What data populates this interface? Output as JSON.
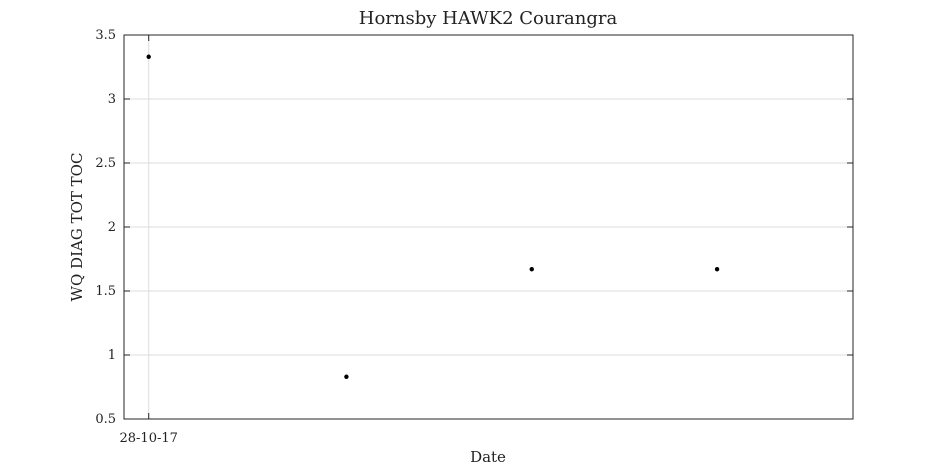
{
  "chart_data": {
    "type": "scatter",
    "title": "Hornsby HAWK2 Courangra",
    "xlabel": "Date",
    "ylabel": "WQ DIAG TOT TOC",
    "ylim": [
      0.5,
      3.5
    ],
    "yticks": [
      0.5,
      1,
      1.5,
      2,
      2.5,
      3,
      3.5
    ],
    "xticks": [
      {
        "label": "28-10-17",
        "x": "2017-10-28"
      }
    ],
    "xlim": [
      "2017-10-26",
      "2017-12-24"
    ],
    "grid": true,
    "series": [
      {
        "points": [
          {
            "x": "2017-10-28",
            "y": 3.33
          },
          {
            "x": "2017-11-13",
            "y": 0.83
          },
          {
            "x": "2017-11-28",
            "y": 1.67
          },
          {
            "x": "2017-12-13",
            "y": 1.67
          }
        ],
        "color": "#000000"
      }
    ]
  }
}
